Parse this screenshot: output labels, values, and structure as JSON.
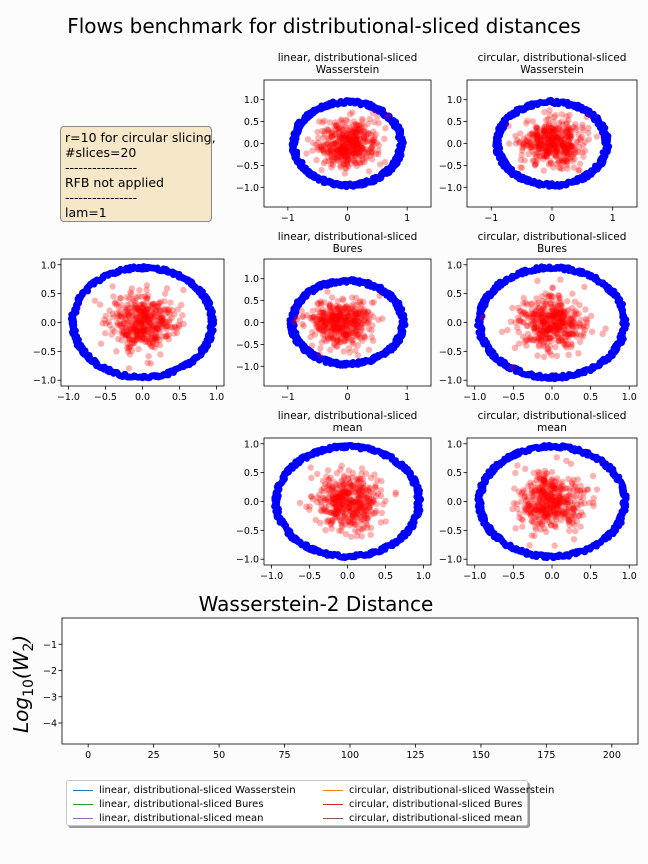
{
  "figure": {
    "title": "Flows benchmark for distributional-sliced distances",
    "info_box": [
      "r=10 for circular slicing,",
      "#slices=20",
      "----------------",
      "RFB not applied",
      "----------------",
      "lam=1"
    ]
  },
  "colors": {
    "target_ring": "#0000ff",
    "particles": "#ff0000",
    "background": "#fcfcfc"
  },
  "scatter_panels": [
    {
      "id": "lin-wass",
      "title_lines": [
        "linear, distributional-sliced",
        "Wasserstein"
      ],
      "xlim": [
        -1.4,
        1.4
      ],
      "ylim": [
        -1.45,
        1.45
      ],
      "xticks": [
        -1,
        0,
        1
      ],
      "yticks": [
        1.0,
        0.5,
        0.0,
        -0.5,
        -1.0
      ],
      "ring": {
        "rx": 0.9,
        "ry": 0.95,
        "band": 0.085
      },
      "cloud": {
        "cx": 0.0,
        "cy": 0.0,
        "sx": 0.25,
        "sy": 0.26
      }
    },
    {
      "id": "circ-wass",
      "title_lines": [
        "circular, distributional-sliced",
        "Wasserstein"
      ],
      "xlim": [
        -1.4,
        1.4
      ],
      "ylim": [
        -1.45,
        1.45
      ],
      "xticks": [
        -1,
        0,
        1
      ],
      "yticks": [
        1.0,
        0.5,
        0.0,
        -0.5,
        -1.0
      ],
      "ring": {
        "rx": 0.9,
        "ry": 0.95,
        "band": 0.085
      },
      "cloud": {
        "cx": 0.0,
        "cy": 0.0,
        "sx": 0.26,
        "sy": 0.26
      }
    },
    {
      "id": "initial",
      "title_lines": [],
      "xlim": [
        -1.1,
        1.1
      ],
      "ylim": [
        -1.1,
        1.1
      ],
      "xticks": [
        -1.0,
        -0.5,
        0.0,
        0.5,
        1.0
      ],
      "yticks": [
        1.0,
        0.5,
        0.0,
        -0.5,
        -1.0
      ],
      "ring": {
        "rx": 0.94,
        "ry": 0.95,
        "band": 0.06
      },
      "cloud": {
        "cx": 0.0,
        "cy": 0.0,
        "sx": 0.22,
        "sy": 0.23
      }
    },
    {
      "id": "lin-bures",
      "title_lines": [
        "linear, distributional-sliced",
        "Bures"
      ],
      "xlim": [
        -1.4,
        1.4
      ],
      "ylim": [
        -1.45,
        1.45
      ],
      "xticks": [
        -1,
        0,
        1
      ],
      "yticks": [
        1.0,
        0.5,
        0.0,
        -0.5,
        -1.0
      ],
      "ring": {
        "rx": 0.93,
        "ry": 0.95,
        "band": 0.085
      },
      "cloud": {
        "cx": -0.1,
        "cy": 0.0,
        "sx": 0.25,
        "sy": 0.25
      }
    },
    {
      "id": "circ-bures",
      "title_lines": [
        "circular, distributional-sliced",
        "Bures"
      ],
      "xlim": [
        -1.1,
        1.1
      ],
      "ylim": [
        -1.1,
        1.1
      ],
      "xticks": [
        -1.0,
        -0.5,
        0.0,
        0.5,
        1.0
      ],
      "yticks": [
        1.0,
        0.5,
        0.0,
        -0.5,
        -1.0
      ],
      "ring": {
        "rx": 0.94,
        "ry": 0.95,
        "band": 0.06
      },
      "cloud": {
        "cx": 0.0,
        "cy": 0.0,
        "sx": 0.22,
        "sy": 0.24
      }
    },
    {
      "id": "lin-mean",
      "title_lines": [
        "linear, distributional-sliced",
        "mean"
      ],
      "xlim": [
        -1.1,
        1.1
      ],
      "ylim": [
        -1.1,
        1.1
      ],
      "xticks": [
        -1.0,
        -0.5,
        0.0,
        0.5,
        1.0
      ],
      "yticks": [
        1.0,
        0.5,
        0.0,
        -0.5,
        -1.0
      ],
      "ring": {
        "rx": 0.94,
        "ry": 0.95,
        "band": 0.06
      },
      "cloud": {
        "cx": 0.0,
        "cy": 0.0,
        "sx": 0.22,
        "sy": 0.24
      }
    },
    {
      "id": "circ-mean",
      "title_lines": [
        "circular, distributional-sliced",
        "mean"
      ],
      "xlim": [
        -1.1,
        1.1
      ],
      "ylim": [
        -1.1,
        1.1
      ],
      "xticks": [
        -1.0,
        -0.5,
        0.0,
        0.5,
        1.0
      ],
      "yticks": [
        1.0,
        0.5,
        0.0,
        -0.5,
        -1.0
      ],
      "ring": {
        "rx": 0.94,
        "ry": 0.95,
        "band": 0.06
      },
      "cloud": {
        "cx": 0.0,
        "cy": 0.0,
        "sx": 0.22,
        "sy": 0.24
      }
    }
  ],
  "chart_data": {
    "type": "line",
    "title": "Wasserstein-2 Distance",
    "ylabel": "Log10(W2)",
    "xlabel": "",
    "xlim": [
      -10,
      210
    ],
    "ylim": [
      -4.8,
      0.0
    ],
    "xticks": [
      0,
      25,
      50,
      75,
      100,
      125,
      150,
      175,
      200
    ],
    "yticks": [
      -1,
      -2,
      -3,
      -4
    ],
    "series": [
      {
        "name": "linear, distributional-sliced Wasserstein",
        "color": "#1f77b4",
        "values": []
      },
      {
        "name": "circular, distributional-sliced Wasserstein",
        "color": "#ff7f0e",
        "values": []
      },
      {
        "name": "linear, distributional-sliced Bures",
        "color": "#2ca02c",
        "values": []
      },
      {
        "name": "circular, distributional-sliced Bures",
        "color": "#d62728",
        "values": []
      },
      {
        "name": "linear, distributional-sliced mean",
        "color": "#9467bd",
        "values": []
      },
      {
        "name": "circular, distributional-sliced mean",
        "color": "#8c564b",
        "values": []
      }
    ],
    "legend_placement": "below"
  }
}
